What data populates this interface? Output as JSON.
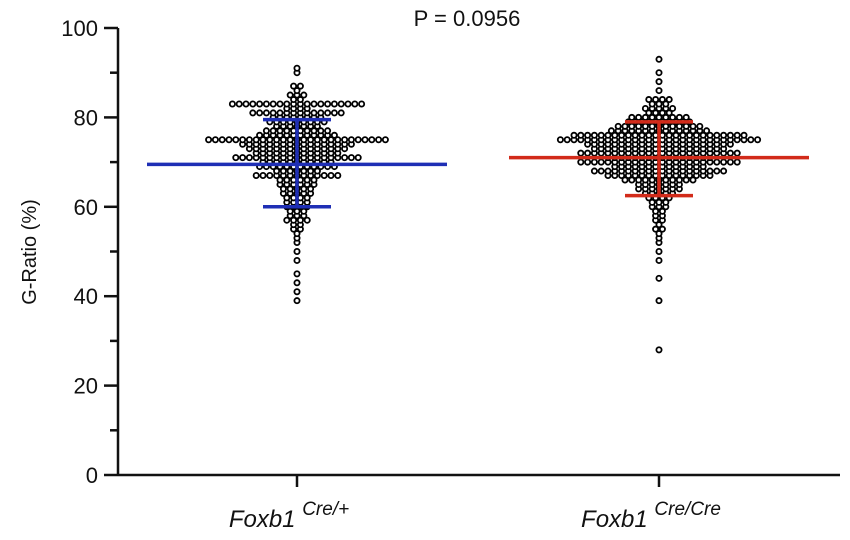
{
  "chart_data": {
    "type": "scatter",
    "subtype": "dot-plot-with-mean-and-sd",
    "title": "P = 0.0956",
    "ylabel": "G-Ratio (%)",
    "ylim": [
      0,
      100
    ],
    "yticks": [
      "0",
      "20",
      "40",
      "60",
      "80",
      "100"
    ],
    "grid": false,
    "groups": [
      {
        "label": "Foxb1",
        "superscript": "Cre/+",
        "color": "#1f2fb5",
        "mean": 69.5,
        "sd_low": 60.0,
        "sd_high": 79.5,
        "values": [
          39,
          41,
          43,
          45,
          48,
          50,
          52,
          53,
          54,
          55,
          55,
          56,
          56,
          57,
          57,
          57,
          57,
          58,
          58,
          58,
          59,
          59,
          59,
          60,
          60,
          60,
          60,
          61,
          61,
          61,
          61,
          62,
          62,
          62,
          62,
          63,
          63,
          63,
          63,
          63,
          64,
          64,
          64,
          64,
          64,
          65,
          65,
          65,
          65,
          65,
          65,
          66,
          66,
          66,
          66,
          66,
          66,
          67,
          67,
          67,
          67,
          67,
          67,
          67,
          67,
          67,
          67,
          67,
          67,
          67,
          68,
          68,
          68,
          68,
          68,
          68,
          68,
          69,
          69,
          69,
          69,
          69,
          69,
          69,
          69,
          69,
          69,
          69,
          69,
          70,
          70,
          70,
          70,
          70,
          70,
          70,
          70,
          70,
          70,
          70,
          71,
          71,
          71,
          71,
          71,
          71,
          71,
          71,
          71,
          71,
          71,
          71,
          71,
          71,
          71,
          71,
          71,
          71,
          71,
          72,
          72,
          72,
          72,
          72,
          72,
          72,
          72,
          72,
          72,
          72,
          72,
          72,
          73,
          73,
          73,
          73,
          73,
          73,
          73,
          73,
          73,
          73,
          73,
          73,
          73,
          73,
          73,
          74,
          74,
          74,
          74,
          74,
          74,
          74,
          74,
          74,
          74,
          74,
          74,
          74,
          74,
          74,
          74,
          74,
          75,
          75,
          75,
          75,
          75,
          75,
          75,
          75,
          75,
          75,
          75,
          75,
          75,
          75,
          75,
          75,
          75,
          75,
          75,
          75,
          75,
          75,
          75,
          75,
          75,
          75,
          75,
          76,
          76,
          76,
          76,
          76,
          76,
          76,
          76,
          76,
          76,
          76,
          76,
          77,
          77,
          77,
          77,
          77,
          77,
          77,
          77,
          77,
          77,
          78,
          78,
          78,
          78,
          78,
          78,
          78,
          79,
          79,
          79,
          79,
          79,
          79,
          79,
          79,
          79,
          80,
          80,
          80,
          80,
          80,
          80,
          80,
          80,
          81,
          81,
          81,
          81,
          81,
          81,
          81,
          81,
          81,
          81,
          81,
          81,
          81,
          81,
          82,
          82,
          82,
          82,
          83,
          83,
          83,
          83,
          83,
          83,
          83,
          83,
          83,
          83,
          83,
          83,
          83,
          83,
          83,
          83,
          83,
          83,
          83,
          83,
          84,
          84,
          85,
          85,
          85,
          86,
          87,
          87,
          90,
          91
        ]
      },
      {
        "label": "Foxb1",
        "superscript": "Cre/Cre",
        "color": "#d22b1a",
        "mean": 71.0,
        "sd_low": 62.5,
        "sd_high": 79.0,
        "values": [
          28,
          39,
          44,
          48,
          50,
          52,
          53,
          54,
          55,
          55,
          56,
          57,
          57,
          58,
          58,
          59,
          59,
          60,
          60,
          60,
          61,
          61,
          61,
          62,
          62,
          62,
          62,
          63,
          63,
          63,
          63,
          63,
          64,
          64,
          64,
          64,
          64,
          64,
          64,
          65,
          65,
          65,
          65,
          65,
          65,
          65,
          66,
          66,
          66,
          66,
          66,
          66,
          66,
          66,
          66,
          66,
          66,
          67,
          67,
          67,
          67,
          67,
          67,
          67,
          67,
          67,
          67,
          67,
          67,
          67,
          67,
          67,
          67,
          68,
          68,
          68,
          68,
          68,
          68,
          68,
          68,
          68,
          68,
          68,
          68,
          68,
          68,
          68,
          68,
          68,
          68,
          68,
          68,
          69,
          69,
          69,
          69,
          69,
          69,
          69,
          69,
          69,
          69,
          69,
          69,
          69,
          69,
          70,
          70,
          70,
          70,
          70,
          70,
          70,
          70,
          70,
          70,
          70,
          70,
          70,
          70,
          70,
          70,
          70,
          70,
          70,
          70,
          70,
          70,
          70,
          70,
          71,
          71,
          71,
          71,
          71,
          71,
          71,
          71,
          71,
          71,
          71,
          71,
          71,
          71,
          71,
          71,
          72,
          72,
          72,
          72,
          72,
          72,
          72,
          72,
          72,
          72,
          72,
          72,
          72,
          72,
          72,
          72,
          72,
          72,
          72,
          72,
          72,
          72,
          72,
          72,
          73,
          73,
          73,
          73,
          73,
          73,
          73,
          73,
          73,
          73,
          73,
          73,
          73,
          73,
          73,
          73,
          73,
          73,
          73,
          73,
          74,
          74,
          74,
          74,
          74,
          74,
          74,
          74,
          74,
          74,
          74,
          74,
          74,
          74,
          74,
          74,
          74,
          74,
          74,
          74,
          74,
          74,
          75,
          75,
          75,
          75,
          75,
          75,
          75,
          75,
          75,
          75,
          75,
          75,
          75,
          75,
          75,
          75,
          75,
          75,
          75,
          75,
          75,
          75,
          75,
          75,
          75,
          75,
          75,
          75,
          75,
          75,
          76,
          76,
          76,
          76,
          76,
          76,
          76,
          76,
          76,
          76,
          76,
          76,
          76,
          76,
          76,
          76,
          76,
          76,
          76,
          76,
          76,
          76,
          76,
          76,
          76,
          76,
          77,
          77,
          77,
          77,
          77,
          77,
          77,
          77,
          77,
          77,
          77,
          77,
          77,
          77,
          77,
          78,
          78,
          78,
          78,
          78,
          78,
          78,
          78,
          78,
          78,
          78,
          78,
          78,
          79,
          79,
          79,
          79,
          79,
          79,
          79,
          79,
          79,
          79,
          80,
          80,
          80,
          80,
          80,
          80,
          80,
          80,
          80,
          81,
          81,
          81,
          81,
          82,
          82,
          82,
          82,
          82,
          83,
          83,
          83,
          84,
          84,
          84,
          84,
          86,
          88,
          90,
          93
        ]
      }
    ]
  }
}
